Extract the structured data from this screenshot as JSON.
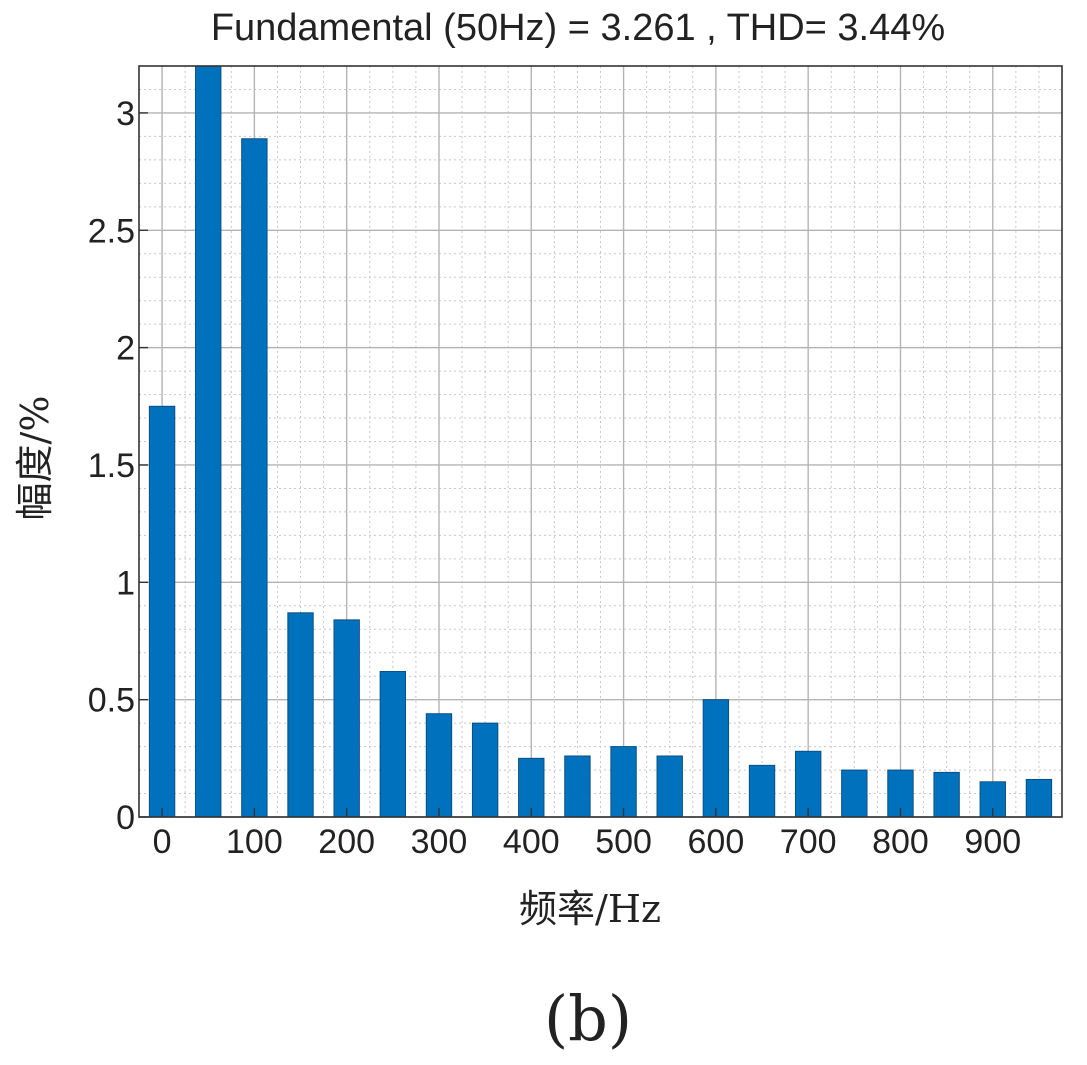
{
  "chart_data": {
    "type": "bar",
    "title": "Fundamental (50Hz) = 3.261 , THD= 3.44%",
    "xlabel": "频率/Hz",
    "ylabel": "幅度/%",
    "caption": "(b)",
    "x": [
      0,
      50,
      100,
      150,
      200,
      250,
      300,
      350,
      400,
      450,
      500,
      550,
      600,
      650,
      700,
      750,
      800,
      850,
      900,
      950
    ],
    "values": [
      1.75,
      3.2,
      2.89,
      0.87,
      0.84,
      0.62,
      0.44,
      0.4,
      0.25,
      0.26,
      0.3,
      0.26,
      0.5,
      0.22,
      0.28,
      0.2,
      0.2,
      0.19,
      0.15,
      0.16
    ],
    "x_ticks": [
      "0",
      "100",
      "200",
      "300",
      "400",
      "500",
      "600",
      "700",
      "800",
      "900"
    ],
    "x_tick_values": [
      0,
      100,
      200,
      300,
      400,
      500,
      600,
      700,
      800,
      900
    ],
    "y_ticks": [
      "0",
      "0.5",
      "1",
      "1.5",
      "2",
      "2.5",
      "3"
    ],
    "y_tick_values": [
      0,
      0.5,
      1,
      1.5,
      2,
      2.5,
      3
    ],
    "xlim": [
      -25,
      975
    ],
    "ylim": [
      0,
      3.2
    ],
    "grid": true,
    "minor_grid": true,
    "bar_color": "#0072BD"
  }
}
